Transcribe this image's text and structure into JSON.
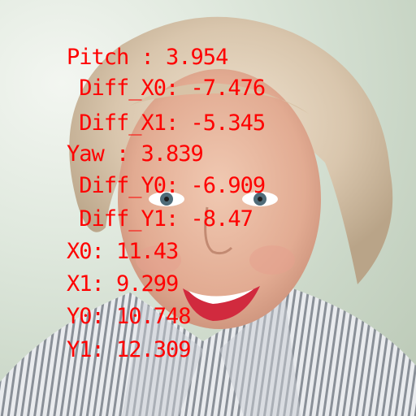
{
  "overlay": {
    "color": "#ff0000",
    "lines": [
      "Pitch : 3.954",
      " Diff_X0: -7.476",
      " Diff_X1: -5.345",
      "Yaw : 3.839",
      " Diff_Y0: -6.909",
      " Diff_Y1: -8.47",
      "X0: 11.43",
      "X1: 9.299",
      "Y0: 10.748",
      "Y1: 12.309"
    ]
  }
}
